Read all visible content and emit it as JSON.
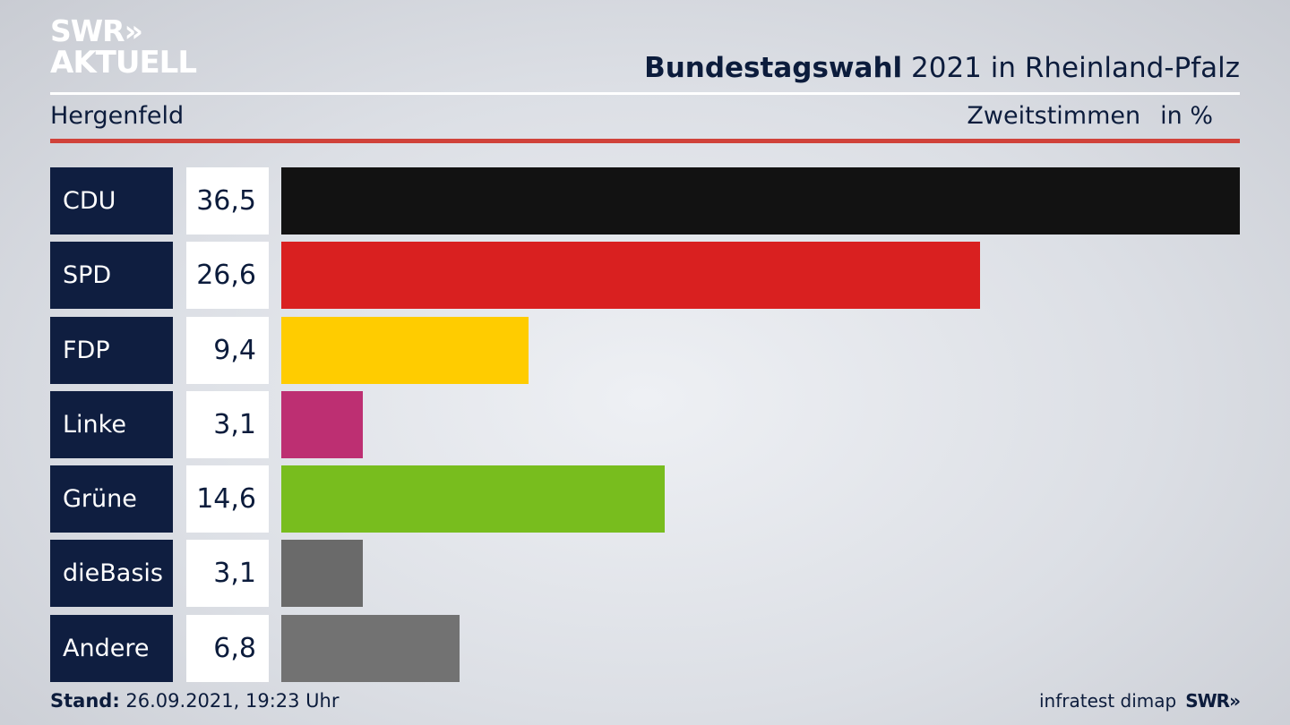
{
  "branding": {
    "logo_line1": "SWR»",
    "logo_line2": "AKTUELL",
    "footer_logo": "SWR»"
  },
  "header": {
    "title_bold": "Bundestagswahl",
    "title_rest": " 2021 in Rheinland-Pfalz",
    "region": "Hergenfeld",
    "vote_type": "Zweitstimmen",
    "unit": "in %"
  },
  "footer": {
    "stand_label": "Stand:",
    "stand_value": " 26.09.2021, 19:23 Uhr",
    "source": "infratest dimap"
  },
  "chart_data": {
    "type": "bar",
    "orientation": "horizontal",
    "categories": [
      "CDU",
      "SPD",
      "FDP",
      "Linke",
      "Grüne",
      "dieBasis",
      "Andere"
    ],
    "values": [
      36.5,
      26.6,
      9.4,
      3.1,
      14.6,
      3.1,
      6.8
    ],
    "value_labels": [
      "36,5",
      "26,6",
      "9,4",
      "3,1",
      "14,6",
      "3,1",
      "6,8"
    ],
    "colors": [
      "#121212",
      "#d92020",
      "#ffcc00",
      "#bd2f72",
      "#78bd1e",
      "#6a6a6a",
      "#727272"
    ],
    "xlim": [
      0,
      36.5
    ]
  }
}
